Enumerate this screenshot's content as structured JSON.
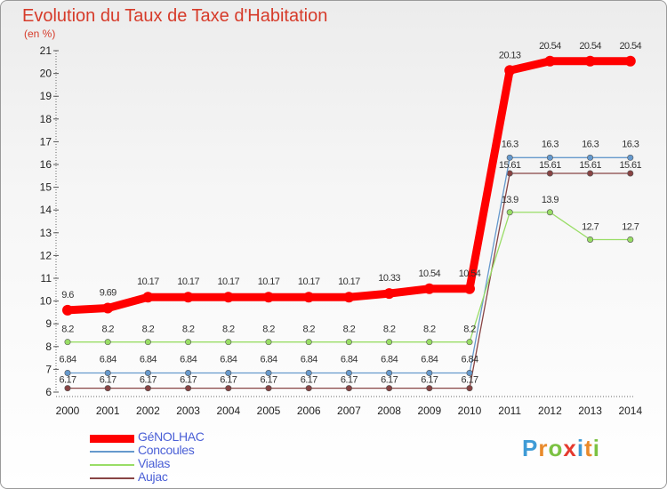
{
  "header": {
    "title": "Evolution du Taux de Taxe d'Habitation",
    "unit": "(en %)"
  },
  "logo": {
    "letters": [
      "P",
      "r",
      "o",
      "x",
      "i",
      "t",
      "i"
    ],
    "colors": [
      "#3f9bd6",
      "#e98a2b",
      "#7cc243",
      "#e53a2f",
      "#3f9bd6",
      "#e98a2b",
      "#7cc243"
    ]
  },
  "chart_data": {
    "type": "line",
    "title": "Evolution du Taux de Taxe d'Habitation",
    "ylabel": "(en %)",
    "xlabel": "",
    "ylim": [
      6,
      21
    ],
    "yticks": [
      6,
      7,
      8,
      9,
      10,
      11,
      12,
      13,
      14,
      15,
      16,
      17,
      18,
      19,
      20,
      21
    ],
    "grid": false,
    "legend": "bottom-left",
    "x": [
      "2000",
      "2001",
      "2002",
      "2003",
      "2004",
      "2005",
      "2006",
      "2007",
      "2008",
      "2009",
      "2010",
      "2011",
      "2012",
      "2013",
      "2014"
    ],
    "series": [
      {
        "name": "GéNOLHAC",
        "color": "#ff0000",
        "values": [
          9.6,
          9.69,
          10.17,
          10.17,
          10.17,
          10.17,
          10.17,
          10.17,
          10.33,
          10.54,
          10.54,
          20.13,
          20.54,
          20.54,
          20.54
        ],
        "labels": [
          "9.6",
          "9.69",
          "10.17",
          "10.17",
          "10.17",
          "10.17",
          "10.17",
          "10.17",
          "10.33",
          "10.54",
          "10.54",
          "20.13",
          "20.54",
          "20.54",
          "20.54"
        ]
      },
      {
        "name": "Concoules",
        "color": "#6699cc",
        "values": [
          6.84,
          6.84,
          6.84,
          6.84,
          6.84,
          6.84,
          6.84,
          6.84,
          6.84,
          6.84,
          6.84,
          16.3,
          16.3,
          16.3,
          16.3
        ],
        "labels": [
          "6.84",
          "6.84",
          "6.84",
          "6.84",
          "6.84",
          "6.84",
          "6.84",
          "6.84",
          "6.84",
          "6.84",
          "6.84",
          "16.3",
          "16.3",
          "16.3",
          "16.3"
        ]
      },
      {
        "name": "Vialas",
        "color": "#99dd66",
        "values": [
          8.2,
          8.2,
          8.2,
          8.2,
          8.2,
          8.2,
          8.2,
          8.2,
          8.2,
          8.2,
          8.2,
          13.9,
          13.9,
          12.7,
          12.7
        ],
        "labels": [
          "8.2",
          "8.2",
          "8.2",
          "8.2",
          "8.2",
          "8.2",
          "8.2",
          "8.2",
          "8.2",
          "8.2",
          "8.2",
          "13.9",
          "13.9",
          "12.7",
          "12.7"
        ]
      },
      {
        "name": "Aujac",
        "color": "#884444",
        "values": [
          6.17,
          6.17,
          6.17,
          6.17,
          6.17,
          6.17,
          6.17,
          6.17,
          6.17,
          6.17,
          6.17,
          15.61,
          15.61,
          15.61,
          15.61
        ],
        "labels": [
          "6.17",
          "6.17",
          "6.17",
          "6.17",
          "6.17",
          "6.17",
          "6.17",
          "6.17",
          "6.17",
          "6.17",
          "6.17",
          "15.61",
          "15.61",
          "15.61",
          "15.61"
        ]
      }
    ]
  }
}
